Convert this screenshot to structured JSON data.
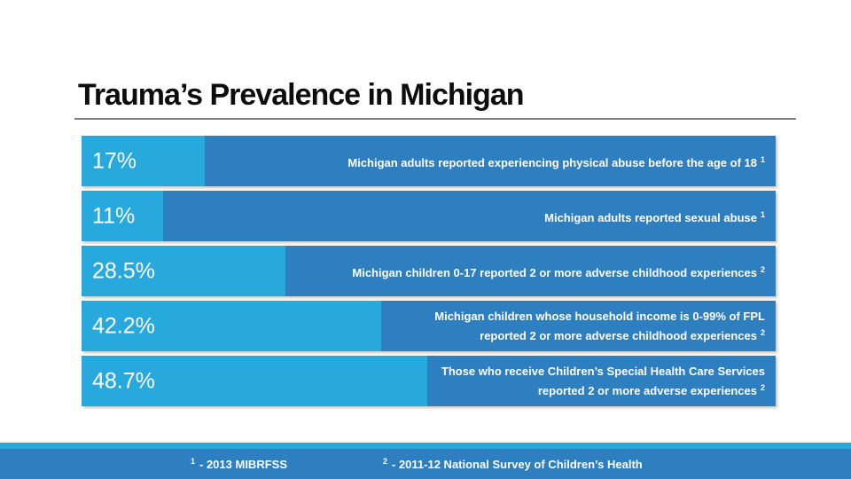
{
  "slide": {
    "title": "Trauma’s Prevalence in Michigan"
  },
  "colors": {
    "bar_light": "#28a9dd",
    "bar_dark": "#2e7fbf",
    "footer_strip": "#28a9dd",
    "footer_band": "#2e7fbf",
    "title_text": "#0d0d0d",
    "underline": "#808080",
    "bar_text": "#ffffff"
  },
  "chart_data": {
    "type": "bar",
    "orientation": "horizontal",
    "title": "Trauma’s Prevalence in Michigan",
    "values": [
      17,
      11,
      28.5,
      42.2,
      48.7
    ],
    "value_labels": [
      "17%",
      "11%",
      "28.5%",
      "42.2%",
      "48.7%"
    ],
    "categories": [
      "Michigan adults reported experiencing physical abuse before the age of 18",
      "Michigan adults reported sexual abuse",
      "Michigan children 0-17 reported 2 or more adverse childhood experiences",
      "Michigan children whose household income is 0-99% of FPL reported 2 or more adverse childhood experiences",
      "Those who receive Children’s Special Health Care Services reported 2 or more adverse experiences"
    ],
    "footnote_refs": [
      "1",
      "1",
      "2",
      "2",
      "2"
    ],
    "unit": "%",
    "xlim": [
      0,
      100
    ],
    "layout_note": "bar width proportional to percentage; value label on light segment, category text right-aligned on dark segment"
  },
  "rows": [
    {
      "pct_label": "17%",
      "lines": [
        {
          "text": "Michigan adults reported experiencing physical abuse before the age of 18",
          "sup": "1"
        }
      ]
    },
    {
      "pct_label": "11%",
      "lines": [
        {
          "text": "Michigan adults reported sexual abuse",
          "sup": "1"
        }
      ]
    },
    {
      "pct_label": "28.5%",
      "lines": [
        {
          "text": "Michigan children 0-17 reported 2 or more adverse childhood experiences",
          "sup": "2"
        }
      ]
    },
    {
      "pct_label": "42.2%",
      "lines": [
        {
          "text": "Michigan children whose household income is 0-99% of FPL",
          "sup": ""
        },
        {
          "text": "reported 2 or more adverse childhood experiences",
          "sup": "2"
        }
      ]
    },
    {
      "pct_label": "48.7%",
      "lines": [
        {
          "text": "Those who receive Children’s Special Health Care Services",
          "sup": ""
        },
        {
          "text": "reported 2 or more adverse experiences",
          "sup": "2"
        }
      ]
    }
  ],
  "footer": {
    "notes": [
      {
        "sup": "1",
        "text": "- 2013 MIBRFSS"
      },
      {
        "sup": "2",
        "text": "- 2011-12 National Survey of Children’s Health"
      }
    ]
  }
}
